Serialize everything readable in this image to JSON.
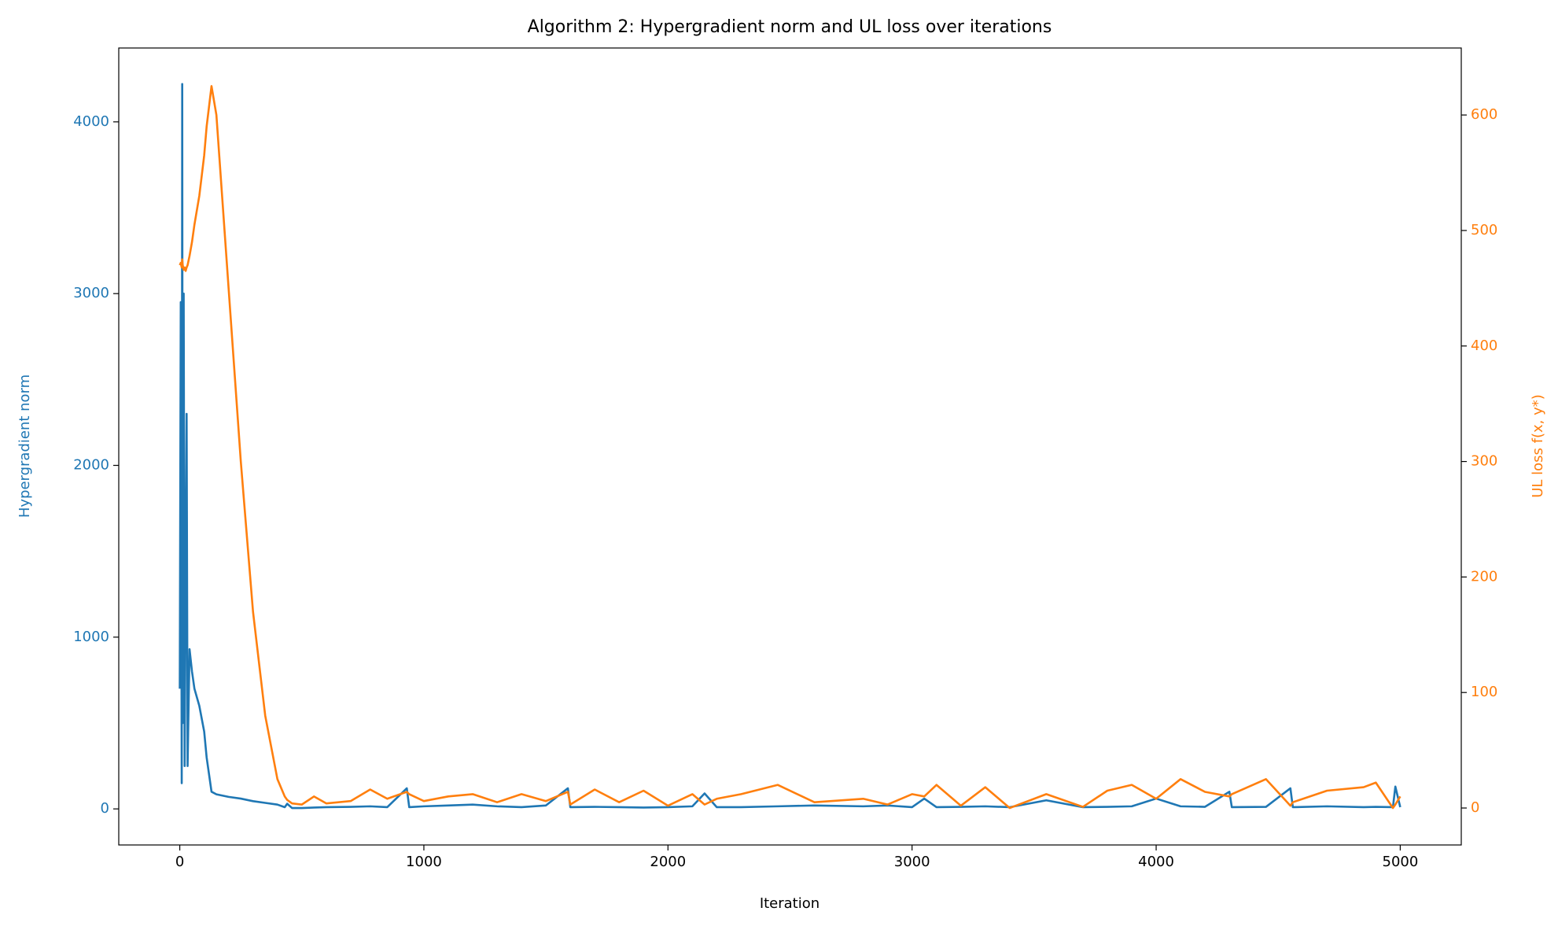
{
  "chart_data": {
    "type": "line",
    "title": "Algorithm 2: Hypergradient norm and UL loss over iterations",
    "xlabel": "Iteration",
    "ylabel": "Hypergradient norm",
    "y2label": "UL loss f(x, y*)",
    "x": [
      0,
      4,
      8,
      10,
      12,
      16,
      20,
      24,
      28,
      32,
      40,
      50,
      60,
      80,
      100,
      110,
      130,
      150,
      200,
      250,
      300,
      350,
      400,
      430,
      440,
      460,
      500,
      550,
      600,
      700,
      780,
      850,
      930,
      940,
      1000,
      1100,
      1200,
      1300,
      1400,
      1500,
      1590,
      1600,
      1700,
      1800,
      1900,
      2000,
      2100,
      2150,
      2200,
      2300,
      2450,
      2600,
      2800,
      2900,
      3000,
      3050,
      3100,
      3200,
      3300,
      3400,
      3550,
      3700,
      3800,
      3900,
      4000,
      4100,
      4200,
      4300,
      4310,
      4450,
      4550,
      4560,
      4700,
      4850,
      4900,
      4970,
      4980,
      5000
    ],
    "series": [
      {
        "name": "Hypergradient norm",
        "color": "#1f77b4",
        "axis": "y",
        "values": [
          700,
          2950,
          150,
          4220,
          500,
          3000,
          250,
          1400,
          2300,
          250,
          930,
          800,
          700,
          600,
          450,
          300,
          100,
          85,
          70,
          60,
          45,
          35,
          25,
          10,
          30,
          5,
          5,
          8,
          10,
          12,
          15,
          10,
          120,
          10,
          15,
          20,
          25,
          15,
          10,
          20,
          120,
          10,
          12,
          10,
          8,
          10,
          15,
          90,
          10,
          10,
          15,
          20,
          15,
          20,
          10,
          60,
          10,
          12,
          15,
          10,
          50,
          10,
          12,
          15,
          60,
          15,
          12,
          100,
          10,
          12,
          120,
          10,
          15,
          10,
          12,
          10,
          130,
          10
        ]
      },
      {
        "name": "UL loss f(x, y*)",
        "color": "#ff7f0e",
        "axis": "y2",
        "values": [
          470,
          472,
          468,
          475,
          470,
          466,
          468,
          465,
          468,
          470,
          478,
          490,
          505,
          530,
          565,
          590,
          625,
          600,
          450,
          300,
          170,
          80,
          25,
          10,
          7,
          4,
          3,
          10,
          4,
          6,
          16,
          8,
          14,
          12,
          6,
          10,
          12,
          5,
          12,
          6,
          14,
          3,
          16,
          5,
          15,
          2,
          12,
          3,
          8,
          12,
          20,
          5,
          8,
          3,
          12,
          10,
          20,
          2,
          18,
          0,
          12,
          1,
          15,
          20,
          8,
          25,
          14,
          10,
          12,
          25,
          2,
          5,
          15,
          18,
          22,
          0,
          3,
          10
        ]
      }
    ],
    "xlim": [
      -250,
      5250
    ],
    "xticks": [
      0,
      1000,
      2000,
      3000,
      4000,
      5000
    ],
    "ylim": [
      -210,
      4430
    ],
    "yticks": [
      0,
      1000,
      2000,
      3000,
      4000
    ],
    "y2lim": [
      -32,
      658
    ],
    "y2ticks": [
      0,
      100,
      200,
      300,
      400,
      500,
      600
    ],
    "grid": false
  }
}
